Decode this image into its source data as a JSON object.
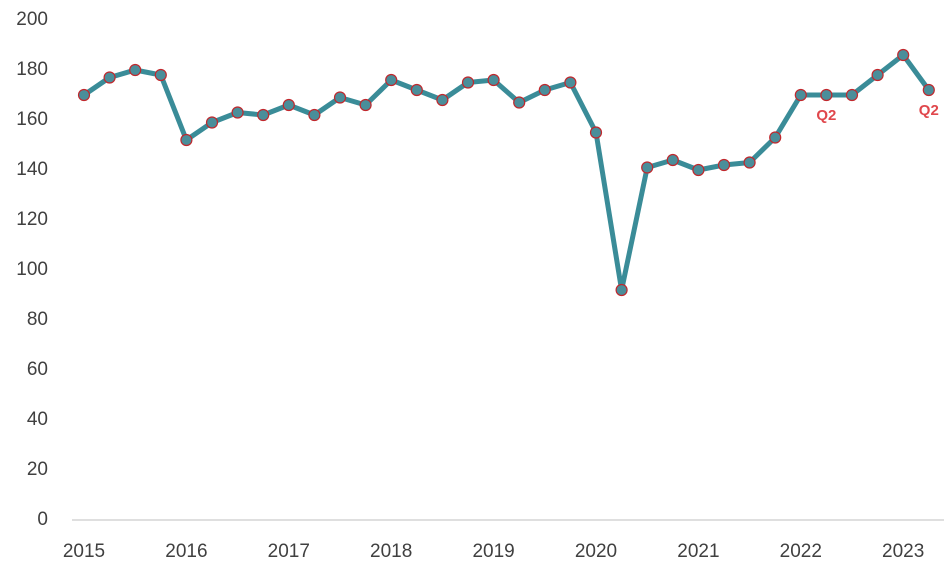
{
  "chart_data": {
    "type": "line",
    "categories": [
      "2015",
      null,
      null,
      null,
      "2016",
      null,
      null,
      null,
      "2017",
      null,
      null,
      null,
      "2018",
      null,
      null,
      null,
      "2019",
      null,
      null,
      null,
      "2020",
      null,
      null,
      null,
      "2021",
      null,
      null,
      null,
      "2022",
      null,
      null,
      null,
      "2023",
      null
    ],
    "series": [
      {
        "color": "#3a8c98",
        "marker_fill": "#4a8e9a",
        "marker_edge": "#c0282d",
        "values": [
          170,
          177,
          180,
          178,
          152,
          159,
          163,
          162,
          166,
          162,
          169,
          166,
          176,
          172,
          168,
          175,
          176,
          167,
          172,
          175,
          155,
          92,
          141,
          144,
          140,
          142,
          143,
          153,
          170,
          170,
          170,
          178,
          186,
          172
        ]
      }
    ],
    "annotations": [
      {
        "text": "Q2",
        "point": 29,
        "color": "#e0474c"
      },
      {
        "text": "Q2",
        "point": 33,
        "color": "#e0474c"
      }
    ],
    "ylim": [
      0,
      200
    ],
    "yticks": [
      0,
      20,
      40,
      60,
      80,
      100,
      120,
      140,
      160,
      180,
      200
    ],
    "grid": false
  }
}
